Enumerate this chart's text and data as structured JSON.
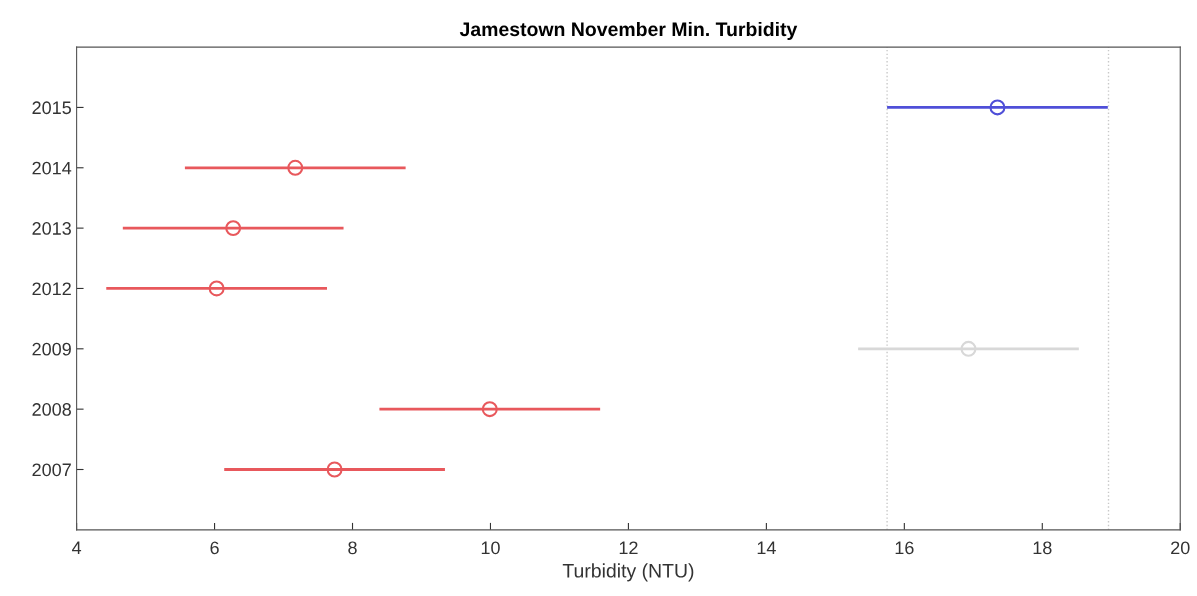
{
  "chart_data": {
    "type": "scatter",
    "orientation": "horizontal",
    "title": "Jamestown November Min. Turbidity",
    "xlabel": "Turbidity (NTU)",
    "categories": [
      "2015",
      "2014",
      "2013",
      "2012",
      "2009",
      "2008",
      "2007"
    ],
    "values": [
      17.35,
      7.17,
      6.27,
      6.03,
      16.93,
      9.99,
      7.74
    ],
    "errors": [
      1.6,
      1.6,
      1.6,
      1.6,
      1.6,
      1.6,
      1.6
    ],
    "colors": [
      "#4f4fd8",
      "#e8585c",
      "#e8585c",
      "#e8585c",
      "#d8d8d8",
      "#e8585c",
      "#e8585c"
    ],
    "xlim": [
      4,
      20
    ],
    "xticks": [
      4,
      6,
      8,
      10,
      12,
      14,
      16,
      18,
      20
    ],
    "ref_lines": [
      {
        "axis": "x",
        "value": 15.75,
        "color": "#c8c8c8",
        "line_style": "dotted"
      },
      {
        "axis": "x",
        "value": 18.96,
        "color": "#c8c8c8",
        "line_style": "dotted"
      }
    ],
    "marker": "circle",
    "grid": false,
    "legend": false
  }
}
